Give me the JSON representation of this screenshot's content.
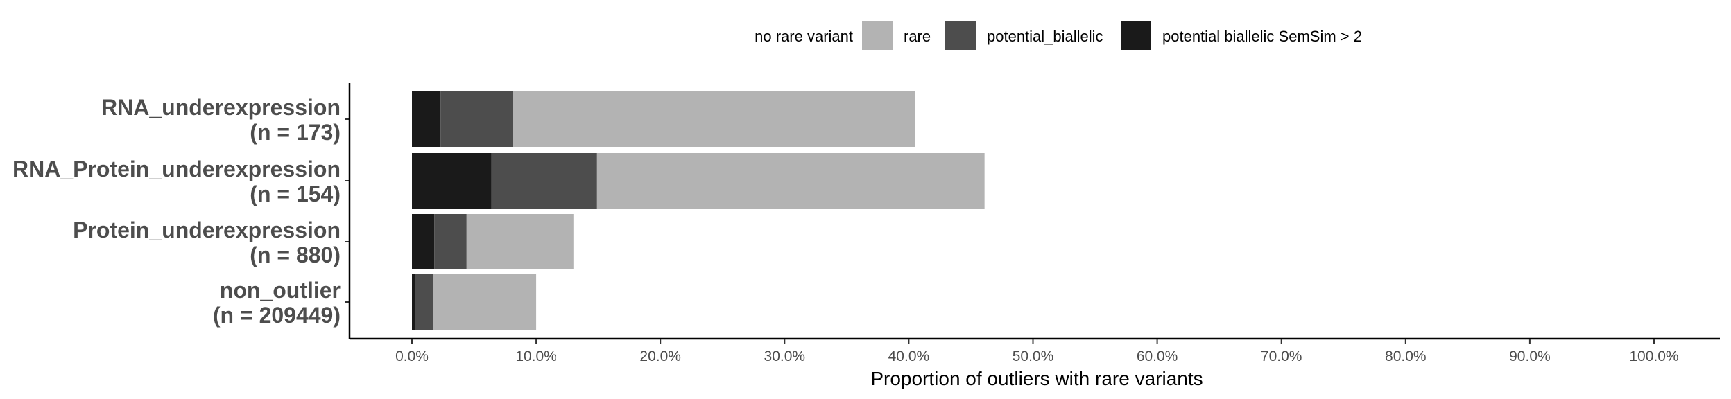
{
  "chart_data": {
    "type": "bar",
    "orientation": "horizontal",
    "stacked": true,
    "title": "",
    "xlabel": "Proportion of outliers with rare variants",
    "ylabel": "",
    "xlim": [
      0,
      1.0
    ],
    "x_ticks": [
      "0.0%",
      "10.0%",
      "20.0%",
      "30.0%",
      "40.0%",
      "50.0%",
      "60.0%",
      "70.0%",
      "80.0%",
      "90.0%",
      "100.0%"
    ],
    "categories": [
      {
        "name": "RNA_underexpression",
        "n_label": "(n = 173)"
      },
      {
        "name": "RNA_Protein_underexpression",
        "n_label": "(n = 154)"
      },
      {
        "name": "Protein_underexpression",
        "n_label": "(n = 880)"
      },
      {
        "name": "non_outlier",
        "n_label": "(n = 209449)"
      }
    ],
    "legend": {
      "placement": "top",
      "entries": [
        {
          "name": "no rare variant",
          "color": "#ffffff"
        },
        {
          "name": "rare",
          "color": "#b3b3b3"
        },
        {
          "name": "potential_biallelic",
          "color": "#4d4d4d"
        },
        {
          "name": "potential biallelic SemSim > 2",
          "color": "#1a1a1a"
        }
      ]
    },
    "series": [
      {
        "name": "potential biallelic SemSim > 2",
        "color": "#1a1a1a",
        "values": [
          0.023,
          0.064,
          0.018,
          0.003
        ]
      },
      {
        "name": "potential_biallelic",
        "color": "#4d4d4d",
        "values": [
          0.058,
          0.085,
          0.026,
          0.014
        ]
      },
      {
        "name": "rare",
        "color": "#b3b3b3",
        "values": [
          0.324,
          0.312,
          0.086,
          0.083
        ]
      }
    ],
    "grid": false
  }
}
